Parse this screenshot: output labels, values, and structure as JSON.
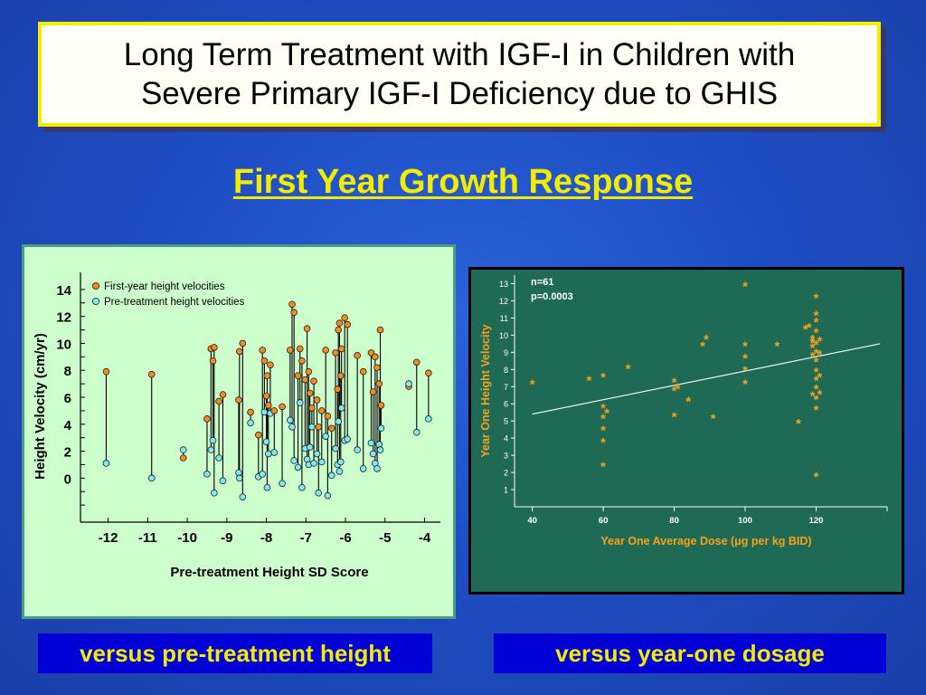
{
  "header": {
    "title_line1": "Long Term Treatment with IGF-I in Children with",
    "title_line2": "Severe Primary IGF-I Deficiency due to GHIS",
    "subtitle": "First Year Growth Response"
  },
  "captions": {
    "left": "versus pre-treatment height",
    "right": "versus year-one dosage"
  },
  "colors": {
    "orange_marker": "#f28c1e",
    "cyan_marker": "#7fe8f0",
    "asterisk": "#f5a21a"
  },
  "chart_data": [
    {
      "type": "scatter",
      "title": "",
      "xlabel": "Pre-treatment Height SD Score",
      "ylabel": "Height Velocity (cm/yr)",
      "xlim": [
        -12.7,
        -3.6
      ],
      "ylim": [
        -3,
        15
      ],
      "x_ticks": [
        "-12",
        "-11",
        "-10",
        "-9",
        "-8",
        "-7",
        "-6",
        "-5",
        "-4"
      ],
      "y_ticks": [
        "0",
        "2",
        "4",
        "6",
        "8",
        "10",
        "12",
        "14"
      ],
      "legend_position": "top-left",
      "series": [
        {
          "name": "First-year height velocities",
          "marker": "orange circle"
        },
        {
          "name": "Pre-treatment height velocities",
          "marker": "cyan circle"
        }
      ],
      "pairs": [
        {
          "x": -12.05,
          "first": 7.9,
          "pre": 1.1
        },
        {
          "x": -10.9,
          "first": 7.7,
          "pre": 0.0
        },
        {
          "x": -10.1,
          "first": 1.5,
          "pre": 2.1
        },
        {
          "x": -9.5,
          "first": 4.4,
          "pre": 0.3
        },
        {
          "x": -9.4,
          "first": 9.6,
          "pre": 2.1
        },
        {
          "x": -9.35,
          "first": 8.7,
          "pre": 2.8
        },
        {
          "x": -9.32,
          "first": 9.7,
          "pre": -1.1
        },
        {
          "x": -9.2,
          "first": 5.7,
          "pre": 1.5
        },
        {
          "x": -9.1,
          "first": 6.2,
          "pre": -0.2
        },
        {
          "x": -8.7,
          "first": 5.8,
          "pre": 0.4
        },
        {
          "x": -8.68,
          "first": 9.4,
          "pre": 0.0
        },
        {
          "x": -8.6,
          "first": 10.0,
          "pre": -1.4
        },
        {
          "x": -8.4,
          "first": 4.9,
          "pre": 4.1
        },
        {
          "x": -8.2,
          "first": 3.2,
          "pre": 0.1
        },
        {
          "x": -8.1,
          "first": 9.5,
          "pre": 0.3
        },
        {
          "x": -8.05,
          "first": 8.7,
          "pre": 4.9
        },
        {
          "x": -8.0,
          "first": 6.1,
          "pre": 2.7
        },
        {
          "x": -7.98,
          "first": 7.6,
          "pre": -0.7
        },
        {
          "x": -7.95,
          "first": 5.4,
          "pre": 1.8
        },
        {
          "x": -7.9,
          "first": 8.4,
          "pre": 4.8
        },
        {
          "x": -7.8,
          "first": 5.0,
          "pre": 1.9
        },
        {
          "x": -7.6,
          "first": 5.3,
          "pre": -0.4
        },
        {
          "x": -7.4,
          "first": 9.5,
          "pre": 4.3
        },
        {
          "x": -7.35,
          "first": 12.9,
          "pre": 3.8
        },
        {
          "x": -7.3,
          "first": 12.3,
          "pre": 1.3
        },
        {
          "x": -7.2,
          "first": 7.6,
          "pre": 0.8
        },
        {
          "x": -7.15,
          "first": 9.6,
          "pre": 5.6
        },
        {
          "x": -7.1,
          "first": 8.7,
          "pre": -0.7
        },
        {
          "x": -7.02,
          "first": 7.3,
          "pre": 2.2
        },
        {
          "x": -6.97,
          "first": 11.1,
          "pre": 1.4
        },
        {
          "x": -6.93,
          "first": 7.9,
          "pre": 1.0
        },
        {
          "x": -6.9,
          "first": 6.3,
          "pre": 2.3
        },
        {
          "x": -6.85,
          "first": 5.2,
          "pre": 3.8
        },
        {
          "x": -6.8,
          "first": 7.2,
          "pre": 1.1
        },
        {
          "x": -6.72,
          "first": 5.8,
          "pre": 1.8
        },
        {
          "x": -6.68,
          "first": 3.8,
          "pre": -1.1
        },
        {
          "x": -6.6,
          "first": 5.0,
          "pre": 1.2
        },
        {
          "x": -6.5,
          "first": 9.5,
          "pre": 3.1
        },
        {
          "x": -6.45,
          "first": 4.6,
          "pre": -1.3
        },
        {
          "x": -6.35,
          "first": 3.7,
          "pre": 0.2
        },
        {
          "x": -6.25,
          "first": 9.3,
          "pre": 2.2
        },
        {
          "x": -6.2,
          "first": 6.6,
          "pre": 1.0
        },
        {
          "x": -6.18,
          "first": 11.0,
          "pre": 4.2
        },
        {
          "x": -6.15,
          "first": 11.5,
          "pre": 0.5
        },
        {
          "x": -6.12,
          "first": 7.6,
          "pre": 1.2
        },
        {
          "x": -6.1,
          "first": 9.6,
          "pre": 5.2
        },
        {
          "x": -6.02,
          "first": 11.9,
          "pre": 2.8
        },
        {
          "x": -5.95,
          "first": 11.4,
          "pre": 2.9
        },
        {
          "x": -5.7,
          "first": 9.1,
          "pre": 2.1
        },
        {
          "x": -5.55,
          "first": 7.9,
          "pre": 0.7
        },
        {
          "x": -5.35,
          "first": 9.3,
          "pre": 2.6
        },
        {
          "x": -5.3,
          "first": 6.4,
          "pre": 1.8
        },
        {
          "x": -5.25,
          "first": 9.0,
          "pre": 1.1
        },
        {
          "x": -5.2,
          "first": 8.2,
          "pre": 0.7
        },
        {
          "x": -5.15,
          "first": 7.0,
          "pre": 2.5
        },
        {
          "x": -5.12,
          "first": 11.0,
          "pre": 2.1
        },
        {
          "x": -5.1,
          "first": 5.4,
          "pre": 3.7
        },
        {
          "x": -4.4,
          "first": 6.8,
          "pre": 7.0
        },
        {
          "x": -4.2,
          "first": 8.6,
          "pre": 3.4
        },
        {
          "x": -3.9,
          "first": 7.8,
          "pre": 4.4
        }
      ]
    },
    {
      "type": "scatter",
      "title": "",
      "xlabel": "Year One Average Dose (μg per kg BID)",
      "ylabel": "Year One Height Velocity",
      "xlim": [
        35,
        140
      ],
      "ylim": [
        0,
        13.5
      ],
      "x_ticks": [
        "40",
        "60",
        "80",
        "100",
        "120"
      ],
      "y_ticks": [
        "1",
        "2",
        "3",
        "4",
        "5",
        "6",
        "7",
        "8",
        "9",
        "10",
        "11",
        "12",
        "13"
      ],
      "annotations": [
        "n=61",
        "p=0.0003"
      ],
      "marker": "asterisk",
      "trendline": {
        "x": [
          40,
          138
        ],
        "y": [
          5.4,
          9.5
        ]
      },
      "points": [
        {
          "x": 40,
          "y": 7.2
        },
        {
          "x": 56,
          "y": 7.4
        },
        {
          "x": 60,
          "y": 7.6
        },
        {
          "x": 60,
          "y": 5.8
        },
        {
          "x": 61,
          "y": 5.5
        },
        {
          "x": 60,
          "y": 5.2
        },
        {
          "x": 60,
          "y": 4.5
        },
        {
          "x": 60,
          "y": 3.8
        },
        {
          "x": 60,
          "y": 2.4
        },
        {
          "x": 67,
          "y": 8.1
        },
        {
          "x": 80,
          "y": 7.3
        },
        {
          "x": 80,
          "y": 6.8
        },
        {
          "x": 80,
          "y": 5.3
        },
        {
          "x": 81,
          "y": 6.9
        },
        {
          "x": 84,
          "y": 6.2
        },
        {
          "x": 88,
          "y": 9.4
        },
        {
          "x": 89,
          "y": 9.8
        },
        {
          "x": 91,
          "y": 5.2
        },
        {
          "x": 100,
          "y": 12.9
        },
        {
          "x": 100,
          "y": 9.4
        },
        {
          "x": 100,
          "y": 8.7
        },
        {
          "x": 100,
          "y": 8.0
        },
        {
          "x": 100,
          "y": 7.2
        },
        {
          "x": 109,
          "y": 9.4
        },
        {
          "x": 115,
          "y": 4.9
        },
        {
          "x": 117,
          "y": 10.4
        },
        {
          "x": 118,
          "y": 10.5
        },
        {
          "x": 119,
          "y": 9.8
        },
        {
          "x": 119,
          "y": 9.6
        },
        {
          "x": 119,
          "y": 9.3
        },
        {
          "x": 119,
          "y": 8.8
        },
        {
          "x": 119,
          "y": 6.5
        },
        {
          "x": 120,
          "y": 12.2
        },
        {
          "x": 120,
          "y": 11.2
        },
        {
          "x": 120,
          "y": 10.8
        },
        {
          "x": 120,
          "y": 10.2
        },
        {
          "x": 120,
          "y": 9.5
        },
        {
          "x": 120,
          "y": 9.0
        },
        {
          "x": 120,
          "y": 8.5
        },
        {
          "x": 120,
          "y": 7.9
        },
        {
          "x": 120,
          "y": 7.4
        },
        {
          "x": 120,
          "y": 6.9
        },
        {
          "x": 120,
          "y": 6.3
        },
        {
          "x": 120,
          "y": 5.7
        },
        {
          "x": 120,
          "y": 1.8
        },
        {
          "x": 121,
          "y": 9.7
        },
        {
          "x": 121,
          "y": 8.9
        },
        {
          "x": 121,
          "y": 7.6
        },
        {
          "x": 121,
          "y": 6.6
        }
      ]
    }
  ]
}
